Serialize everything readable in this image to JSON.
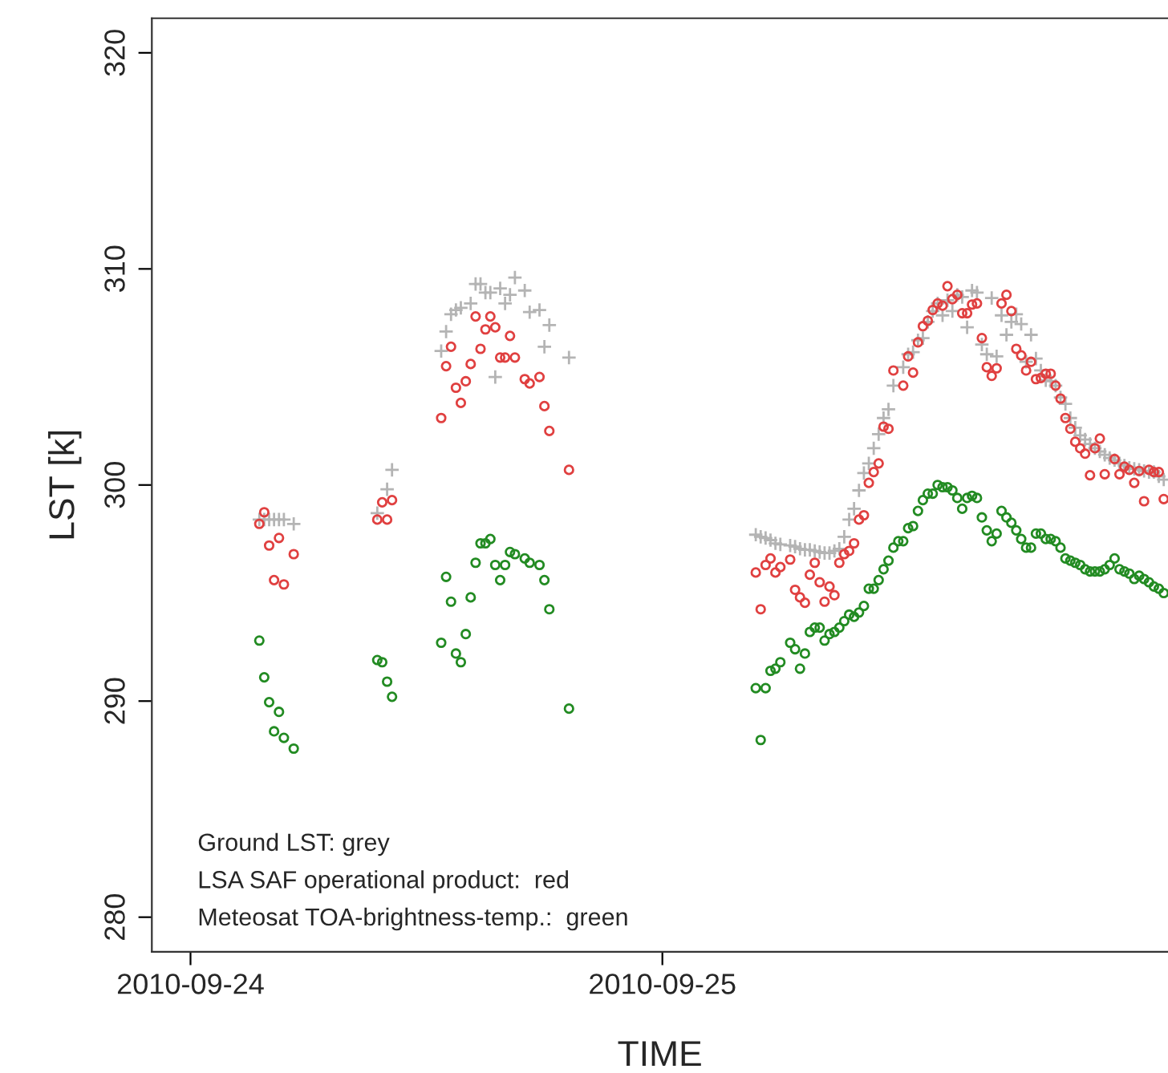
{
  "chart_data": {
    "type": "scatter",
    "xlabel": "TIME",
    "ylabel": "LST [k]",
    "xlim": [
      "2010-09-23T22:02",
      "2010-09-26T01:43"
    ],
    "xticks": [
      "2010-09-24",
      "2010-09-25"
    ],
    "ylim": [
      278.4,
      321.6
    ],
    "yticks": [
      280,
      290,
      300,
      310,
      320
    ],
    "grid": false,
    "legend": false,
    "annotations": [
      "Ground LST: grey",
      "LSA SAF operational product:  red",
      "Meteosat TOA-brightness-temp.:  green"
    ],
    "series": [
      {
        "color": "#b4b4b4",
        "marker": "cross",
        "x": [
          "2010-09-24T03:30",
          "2010-09-24T03:45",
          "2010-09-24T04:00",
          "2010-09-24T04:15",
          "2010-09-24T04:30",
          "2010-09-24T04:45",
          "2010-09-24T05:15",
          "2010-09-24T09:30",
          "2010-09-24T10:00",
          "2010-09-24T10:15",
          "2010-09-24T12:45",
          "2010-09-24T13:00",
          "2010-09-24T13:15",
          "2010-09-24T13:30",
          "2010-09-24T13:45",
          "2010-09-24T14:15",
          "2010-09-24T14:30",
          "2010-09-24T14:45",
          "2010-09-24T15:00",
          "2010-09-24T15:15",
          "2010-09-24T15:30",
          "2010-09-24T15:45",
          "2010-09-24T16:00",
          "2010-09-24T16:15",
          "2010-09-24T16:30",
          "2010-09-24T17:00",
          "2010-09-24T17:15",
          "2010-09-24T17:45",
          "2010-09-24T18:00",
          "2010-09-24T18:15",
          "2010-09-24T19:15",
          "2010-09-25T04:45",
          "2010-09-25T05:00",
          "2010-09-25T05:15",
          "2010-09-25T05:30",
          "2010-09-25T05:45",
          "2010-09-25T06:00",
          "2010-09-25T06:30",
          "2010-09-25T06:45",
          "2010-09-25T07:00",
          "2010-09-25T07:15",
          "2010-09-25T07:30",
          "2010-09-25T07:45",
          "2010-09-25T08:00",
          "2010-09-25T08:15",
          "2010-09-25T08:30",
          "2010-09-25T08:45",
          "2010-09-25T09:00",
          "2010-09-25T09:15",
          "2010-09-25T09:30",
          "2010-09-25T09:45",
          "2010-09-25T10:00",
          "2010-09-25T10:15",
          "2010-09-25T10:30",
          "2010-09-25T10:45",
          "2010-09-25T11:00",
          "2010-09-25T11:15",
          "2010-09-25T11:30",
          "2010-09-25T11:45",
          "2010-09-25T12:15",
          "2010-09-25T12:30",
          "2010-09-25T12:45",
          "2010-09-25T13:00",
          "2010-09-25T13:15",
          "2010-09-25T13:30",
          "2010-09-25T13:45",
          "2010-09-25T14:00",
          "2010-09-25T14:15",
          "2010-09-25T14:30",
          "2010-09-25T14:45",
          "2010-09-25T15:00",
          "2010-09-25T15:15",
          "2010-09-25T15:30",
          "2010-09-25T15:45",
          "2010-09-25T16:00",
          "2010-09-25T16:15",
          "2010-09-25T16:30",
          "2010-09-25T16:45",
          "2010-09-25T17:00",
          "2010-09-25T17:15",
          "2010-09-25T17:30",
          "2010-09-25T17:45",
          "2010-09-25T18:00",
          "2010-09-25T18:15",
          "2010-09-25T18:30",
          "2010-09-25T18:45",
          "2010-09-25T19:00",
          "2010-09-25T19:15",
          "2010-09-25T19:30",
          "2010-09-25T19:45",
          "2010-09-25T20:00",
          "2010-09-25T20:15",
          "2010-09-25T20:30",
          "2010-09-25T20:45",
          "2010-09-25T21:00",
          "2010-09-25T21:15",
          "2010-09-25T21:30",
          "2010-09-25T21:45",
          "2010-09-25T22:00",
          "2010-09-25T22:15",
          "2010-09-25T22:30",
          "2010-09-25T22:45",
          "2010-09-25T23:00",
          "2010-09-25T23:15",
          "2010-09-25T23:30",
          "2010-09-25T23:45",
          "2010-09-26T00:00",
          "2010-09-26T00:15",
          "2010-09-26T00:30",
          "2010-09-26T00:45",
          "2010-09-26T01:00",
          "2010-09-26T01:15",
          "2010-09-26T01:30"
        ],
        "values": [
          298.4,
          298.4,
          298.4,
          298.4,
          298.4,
          298.4,
          298.2,
          298.7,
          299.8,
          300.7,
          306.2,
          307.1,
          307.9,
          308.1,
          308.2,
          308.4,
          309.3,
          309.3,
          308.9,
          308.9,
          305.0,
          309.1,
          308.4,
          308.8,
          309.6,
          309.0,
          308.0,
          308.1,
          306.4,
          307.4,
          305.9,
          297.7,
          297.6,
          297.55,
          297.45,
          297.3,
          297.25,
          297.2,
          297.15,
          297.05,
          297.0,
          297.0,
          296.95,
          296.9,
          296.85,
          296.85,
          296.95,
          297.05,
          297.6,
          298.4,
          298.9,
          299.75,
          300.55,
          301.0,
          301.7,
          302.35,
          303.1,
          303.5,
          304.6,
          305.45,
          306.05,
          306.15,
          306.7,
          306.8,
          307.55,
          308.05,
          308.4,
          307.85,
          308.55,
          308.05,
          308.8,
          308.7,
          307.3,
          309.0,
          308.9,
          306.5,
          306.05,
          308.65,
          305.95,
          307.85,
          306.95,
          307.55,
          307.9,
          307.45,
          305.7,
          306.95,
          305.85,
          305.3,
          304.85,
          304.8,
          304.6,
          304.05,
          303.75,
          303.1,
          302.65,
          302.3,
          302.1,
          301.9,
          301.7,
          301.55,
          301.4,
          301.25,
          301.15,
          301.0,
          300.9,
          300.8,
          300.75,
          300.7,
          300.65,
          300.6,
          300.6,
          300.4,
          300.25
        ]
      },
      {
        "color": "#e04040",
        "marker": "circle",
        "x": [
          "2010-09-24T03:30",
          "2010-09-24T03:45",
          "2010-09-24T04:00",
          "2010-09-24T04:15",
          "2010-09-24T04:30",
          "2010-09-24T04:45",
          "2010-09-24T05:15",
          "2010-09-24T09:30",
          "2010-09-24T09:45",
          "2010-09-24T10:00",
          "2010-09-24T10:15",
          "2010-09-24T12:45",
          "2010-09-24T13:00",
          "2010-09-24T13:15",
          "2010-09-24T13:30",
          "2010-09-24T13:45",
          "2010-09-24T14:00",
          "2010-09-24T14:15",
          "2010-09-24T14:30",
          "2010-09-24T14:45",
          "2010-09-24T15:00",
          "2010-09-24T15:15",
          "2010-09-24T15:30",
          "2010-09-24T15:45",
          "2010-09-24T16:00",
          "2010-09-24T16:15",
          "2010-09-24T16:30",
          "2010-09-24T17:00",
          "2010-09-24T17:15",
          "2010-09-24T17:45",
          "2010-09-24T18:00",
          "2010-09-24T18:15",
          "2010-09-24T19:15",
          "2010-09-25T04:45",
          "2010-09-25T05:00",
          "2010-09-25T05:15",
          "2010-09-25T05:30",
          "2010-09-25T05:45",
          "2010-09-25T06:00",
          "2010-09-25T06:30",
          "2010-09-25T06:45",
          "2010-09-25T07:00",
          "2010-09-25T07:15",
          "2010-09-25T07:30",
          "2010-09-25T07:45",
          "2010-09-25T08:00",
          "2010-09-25T08:15",
          "2010-09-25T08:30",
          "2010-09-25T08:45",
          "2010-09-25T09:00",
          "2010-09-25T09:15",
          "2010-09-25T09:30",
          "2010-09-25T09:45",
          "2010-09-25T10:00",
          "2010-09-25T10:15",
          "2010-09-25T10:30",
          "2010-09-25T10:45",
          "2010-09-25T11:00",
          "2010-09-25T11:15",
          "2010-09-25T11:30",
          "2010-09-25T11:45",
          "2010-09-25T12:15",
          "2010-09-25T12:30",
          "2010-09-25T12:45",
          "2010-09-25T13:00",
          "2010-09-25T13:15",
          "2010-09-25T13:30",
          "2010-09-25T13:45",
          "2010-09-25T14:00",
          "2010-09-25T14:15",
          "2010-09-25T14:30",
          "2010-09-25T14:45",
          "2010-09-25T15:00",
          "2010-09-25T15:15",
          "2010-09-25T15:30",
          "2010-09-25T15:45",
          "2010-09-25T16:00",
          "2010-09-25T16:15",
          "2010-09-25T16:30",
          "2010-09-25T16:45",
          "2010-09-25T17:00",
          "2010-09-25T17:15",
          "2010-09-25T17:30",
          "2010-09-25T17:45",
          "2010-09-25T18:00",
          "2010-09-25T18:15",
          "2010-09-25T18:30",
          "2010-09-25T18:45",
          "2010-09-25T19:00",
          "2010-09-25T19:15",
          "2010-09-25T19:30",
          "2010-09-25T19:45",
          "2010-09-25T20:00",
          "2010-09-25T20:15",
          "2010-09-25T20:30",
          "2010-09-25T20:45",
          "2010-09-25T21:00",
          "2010-09-25T21:15",
          "2010-09-25T21:30",
          "2010-09-25T21:45",
          "2010-09-25T22:00",
          "2010-09-25T22:15",
          "2010-09-25T22:30",
          "2010-09-25T23:00",
          "2010-09-25T23:15",
          "2010-09-25T23:30",
          "2010-09-25T23:45",
          "2010-09-26T00:00",
          "2010-09-26T00:15",
          "2010-09-26T00:30",
          "2010-09-26T00:45",
          "2010-09-26T01:00",
          "2010-09-26T01:15",
          "2010-09-26T01:30"
        ],
        "values": [
          298.2,
          298.74,
          297.2,
          295.6,
          297.55,
          295.4,
          296.8,
          298.4,
          299.2,
          298.4,
          299.3,
          303.1,
          305.5,
          306.4,
          304.5,
          303.8,
          304.8,
          305.6,
          307.8,
          306.3,
          307.2,
          307.8,
          307.3,
          305.9,
          305.9,
          306.9,
          305.9,
          304.9,
          304.7,
          305.0,
          303.65,
          302.5,
          300.7,
          295.95,
          294.25,
          296.3,
          296.6,
          295.95,
          296.2,
          296.55,
          295.15,
          294.8,
          294.55,
          295.85,
          296.4,
          295.5,
          294.6,
          295.3,
          294.9,
          296.4,
          296.8,
          296.95,
          297.3,
          298.4,
          298.6,
          300.1,
          300.6,
          301.0,
          302.7,
          302.6,
          305.3,
          304.6,
          305.95,
          305.2,
          306.6,
          307.35,
          307.6,
          308.1,
          308.4,
          308.3,
          309.2,
          308.6,
          308.8,
          307.95,
          307.95,
          308.35,
          308.4,
          306.8,
          305.45,
          305.05,
          305.4,
          308.4,
          308.8,
          308.05,
          306.3,
          306.0,
          305.3,
          305.7,
          304.9,
          304.95,
          305.15,
          305.15,
          304.6,
          304.0,
          303.1,
          302.6,
          302.0,
          301.7,
          301.45,
          300.45,
          301.7,
          302.15,
          300.5,
          301.2,
          300.5,
          300.85,
          300.7,
          300.1,
          300.65,
          299.25,
          300.7,
          300.6,
          300.6,
          299.35
        ]
      },
      {
        "color": "#228b22",
        "marker": "circle",
        "x": [
          "2010-09-24T03:30",
          "2010-09-24T03:45",
          "2010-09-24T04:00",
          "2010-09-24T04:15",
          "2010-09-24T04:30",
          "2010-09-24T04:45",
          "2010-09-24T05:15",
          "2010-09-24T09:30",
          "2010-09-24T09:45",
          "2010-09-24T10:00",
          "2010-09-24T10:15",
          "2010-09-24T12:45",
          "2010-09-24T13:00",
          "2010-09-24T13:15",
          "2010-09-24T13:30",
          "2010-09-24T13:45",
          "2010-09-24T14:00",
          "2010-09-24T14:15",
          "2010-09-24T14:30",
          "2010-09-24T14:45",
          "2010-09-24T15:00",
          "2010-09-24T15:15",
          "2010-09-24T15:30",
          "2010-09-24T15:45",
          "2010-09-24T16:00",
          "2010-09-24T16:15",
          "2010-09-24T16:30",
          "2010-09-24T17:00",
          "2010-09-24T17:15",
          "2010-09-24T17:45",
          "2010-09-24T18:00",
          "2010-09-24T18:15",
          "2010-09-24T19:15",
          "2010-09-25T04:45",
          "2010-09-25T05:00",
          "2010-09-25T05:15",
          "2010-09-25T05:30",
          "2010-09-25T05:45",
          "2010-09-25T06:00",
          "2010-09-25T06:30",
          "2010-09-25T06:45",
          "2010-09-25T07:00",
          "2010-09-25T07:15",
          "2010-09-25T07:30",
          "2010-09-25T07:45",
          "2010-09-25T08:00",
          "2010-09-25T08:15",
          "2010-09-25T08:30",
          "2010-09-25T08:45",
          "2010-09-25T09:00",
          "2010-09-25T09:15",
          "2010-09-25T09:30",
          "2010-09-25T09:45",
          "2010-09-25T10:00",
          "2010-09-25T10:15",
          "2010-09-25T10:30",
          "2010-09-25T10:45",
          "2010-09-25T11:00",
          "2010-09-25T11:15",
          "2010-09-25T11:30",
          "2010-09-25T11:45",
          "2010-09-25T12:00",
          "2010-09-25T12:15",
          "2010-09-25T12:30",
          "2010-09-25T12:45",
          "2010-09-25T13:00",
          "2010-09-25T13:15",
          "2010-09-25T13:30",
          "2010-09-25T13:45",
          "2010-09-25T14:00",
          "2010-09-25T14:15",
          "2010-09-25T14:30",
          "2010-09-25T14:45",
          "2010-09-25T15:00",
          "2010-09-25T15:15",
          "2010-09-25T15:30",
          "2010-09-25T15:45",
          "2010-09-25T16:00",
          "2010-09-25T16:15",
          "2010-09-25T16:30",
          "2010-09-25T16:45",
          "2010-09-25T17:00",
          "2010-09-25T17:15",
          "2010-09-25T17:30",
          "2010-09-25T17:45",
          "2010-09-25T18:00",
          "2010-09-25T18:15",
          "2010-09-25T18:30",
          "2010-09-25T18:45",
          "2010-09-25T19:00",
          "2010-09-25T19:15",
          "2010-09-25T19:30",
          "2010-09-25T19:45",
          "2010-09-25T20:00",
          "2010-09-25T20:15",
          "2010-09-25T20:30",
          "2010-09-25T20:45",
          "2010-09-25T21:00",
          "2010-09-25T21:15",
          "2010-09-25T21:30",
          "2010-09-25T21:45",
          "2010-09-25T22:00",
          "2010-09-25T22:15",
          "2010-09-25T22:30",
          "2010-09-25T22:45",
          "2010-09-25T23:00",
          "2010-09-25T23:15",
          "2010-09-25T23:30",
          "2010-09-25T23:45",
          "2010-09-26T00:00",
          "2010-09-26T00:15",
          "2010-09-26T00:30",
          "2010-09-26T00:45",
          "2010-09-26T01:00",
          "2010-09-26T01:15",
          "2010-09-26T01:30"
        ],
        "values": [
          292.8,
          291.1,
          289.95,
          288.6,
          289.5,
          288.3,
          287.8,
          291.9,
          291.8,
          290.9,
          290.2,
          292.7,
          295.75,
          294.6,
          292.2,
          291.8,
          293.1,
          294.8,
          296.4,
          297.3,
          297.3,
          297.5,
          296.3,
          295.6,
          296.3,
          296.9,
          296.8,
          296.6,
          296.4,
          296.3,
          295.6,
          294.25,
          289.65,
          290.6,
          288.2,
          290.6,
          291.4,
          291.5,
          291.8,
          292.7,
          292.4,
          291.5,
          292.2,
          293.2,
          293.4,
          293.4,
          292.8,
          293.1,
          293.2,
          293.4,
          293.7,
          294.0,
          293.9,
          294.1,
          294.4,
          295.2,
          295.2,
          295.6,
          296.1,
          296.5,
          297.1,
          297.4,
          297.4,
          298.0,
          298.1,
          298.8,
          299.3,
          299.6,
          299.6,
          300.0,
          299.9,
          299.9,
          299.75,
          299.4,
          298.9,
          299.4,
          299.5,
          299.4,
          298.5,
          297.9,
          297.4,
          297.75,
          298.8,
          298.5,
          298.25,
          297.9,
          297.5,
          297.1,
          297.1,
          297.75,
          297.75,
          297.5,
          297.5,
          297.4,
          297.1,
          296.6,
          296.5,
          296.4,
          296.3,
          296.1,
          296.0,
          296.0,
          296.0,
          296.1,
          296.3,
          296.6,
          296.1,
          296.0,
          295.9,
          295.65,
          295.8,
          295.65,
          295.5,
          295.3,
          295.2,
          295.0
        ]
      }
    ]
  }
}
